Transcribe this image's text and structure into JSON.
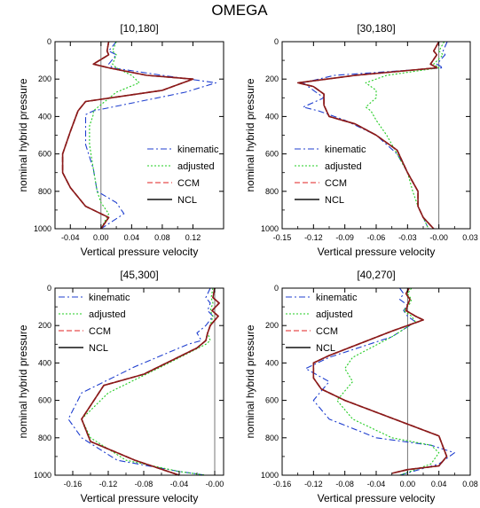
{
  "figure_title": "OMEGA",
  "colors": {
    "kinematic": "#1f3fcf",
    "adjusted": "#22cc22",
    "CCM": "#e02020",
    "NCL": "#111111",
    "ccm_ncl_overlay": "#8b1a1a",
    "zero_line": "#555555"
  },
  "chart_data": [
    {
      "type": "line",
      "title": "[10,180]",
      "xlabel": "Vertical pressure velocity",
      "ylabel": "nominal hybrid pressure",
      "xlim": [
        -0.06,
        0.16
      ],
      "ylim": [
        1000,
        0
      ],
      "xticks": [
        -0.04,
        0.0,
        0.04,
        0.08,
        0.12
      ],
      "xticklabels": [
        "-0.04",
        "0.00",
        "0.04",
        "0.08",
        "0.12"
      ],
      "yticks": [
        0,
        200,
        400,
        600,
        800,
        1000
      ],
      "yticklabels": [
        "0",
        "200",
        "400",
        "600",
        "800",
        "1000"
      ],
      "legend_position": "lower-right",
      "series": [
        {
          "name": "kinematic",
          "style": "dashdot",
          "x": [
            0.02,
            0.01,
            0.02,
            0.01,
            0.015,
            0.08,
            0.15,
            0.11,
            -0.01,
            -0.02,
            -0.02,
            -0.02,
            -0.01,
            -0.005,
            0.02,
            0.03,
            0.0
          ],
          "y": [
            0,
            50,
            70,
            120,
            140,
            180,
            220,
            270,
            370,
            390,
            450,
            550,
            680,
            800,
            860,
            920,
            1000
          ]
        },
        {
          "name": "adjusted",
          "style": "dotted",
          "x": [
            0.02,
            0.015,
            0.02,
            0.015,
            0.02,
            0.04,
            0.05,
            0.02,
            -0.01,
            -0.01,
            -0.015,
            -0.015,
            -0.01,
            -0.005,
            0.0,
            0.01,
            0.0
          ],
          "y": [
            0,
            50,
            70,
            120,
            140,
            180,
            220,
            270,
            370,
            390,
            450,
            550,
            680,
            800,
            860,
            920,
            1000
          ]
        },
        {
          "name": "CCM",
          "style": "dashed",
          "x": [
            0.01,
            0.008,
            0.01,
            -0.01,
            0.01,
            0.06,
            0.12,
            0.08,
            -0.02,
            -0.03,
            -0.04,
            -0.05,
            -0.05,
            -0.04,
            -0.02,
            0.01,
            0.0
          ],
          "y": [
            0,
            50,
            70,
            120,
            140,
            180,
            200,
            260,
            320,
            370,
            480,
            600,
            700,
            780,
            880,
            940,
            1000
          ]
        },
        {
          "name": "NCL",
          "style": "solid",
          "x": [
            0.01,
            0.008,
            0.01,
            -0.01,
            0.01,
            0.06,
            0.12,
            0.08,
            -0.02,
            -0.03,
            -0.04,
            -0.05,
            -0.05,
            -0.04,
            -0.02,
            0.01,
            0.0
          ],
          "y": [
            0,
            50,
            70,
            120,
            140,
            180,
            200,
            260,
            320,
            370,
            480,
            600,
            700,
            780,
            880,
            940,
            1000
          ]
        }
      ]
    },
    {
      "type": "line",
      "title": "[30,180]",
      "xlabel": "Vertical pressure velocity",
      "ylabel": "nominal hybrid pressure",
      "xlim": [
        -0.15,
        0.03
      ],
      "ylim": [
        1000,
        0
      ],
      "xticks": [
        -0.15,
        -0.12,
        -0.09,
        -0.06,
        -0.03,
        0.0,
        0.03
      ],
      "xticklabels": [
        "-0.15",
        "-0.12",
        "-0.09",
        "-0.06",
        "-0.03",
        "-0.00",
        "0.03"
      ],
      "yticks": [
        0,
        200,
        400,
        600,
        800,
        1000
      ],
      "yticklabels": [
        "0",
        "200",
        "400",
        "600",
        "800",
        "1000"
      ],
      "legend_position": "lower-left",
      "series": [
        {
          "name": "kinematic",
          "style": "dashdot",
          "x": [
            0.008,
            0.004,
            0.006,
            -0.002,
            0.004,
            -0.1,
            -0.13,
            -0.12,
            -0.11,
            -0.13,
            -0.115,
            -0.09,
            -0.06,
            -0.04,
            -0.03,
            -0.02,
            -0.02,
            -0.015,
            -0.01
          ],
          "y": [
            0,
            50,
            70,
            120,
            140,
            180,
            220,
            260,
            300,
            350,
            370,
            420,
            500,
            600,
            700,
            800,
            880,
            940,
            1000
          ]
        },
        {
          "name": "adjusted",
          "style": "dotted",
          "x": [
            0.005,
            0.0,
            0.004,
            -0.005,
            0.0,
            -0.05,
            -0.07,
            -0.06,
            -0.06,
            -0.07,
            -0.065,
            -0.06,
            -0.05,
            -0.04,
            -0.03,
            -0.025,
            -0.02,
            -0.015,
            -0.01
          ],
          "y": [
            0,
            50,
            70,
            120,
            140,
            180,
            220,
            260,
            300,
            350,
            370,
            420,
            500,
            600,
            700,
            800,
            880,
            940,
            1000
          ]
        },
        {
          "name": "CCM",
          "style": "dashed",
          "x": [
            0.0,
            -0.005,
            -0.002,
            -0.008,
            -0.002,
            -0.08,
            -0.135,
            -0.12,
            -0.11,
            -0.11,
            -0.105,
            -0.08,
            -0.06,
            -0.04,
            -0.03,
            -0.02,
            -0.02,
            -0.015,
            -0.005
          ],
          "y": [
            0,
            50,
            70,
            120,
            140,
            180,
            220,
            240,
            280,
            340,
            400,
            440,
            500,
            580,
            700,
            800,
            880,
            940,
            1000
          ]
        },
        {
          "name": "NCL",
          "style": "solid",
          "x": [
            0.0,
            -0.005,
            -0.002,
            -0.008,
            -0.002,
            -0.08,
            -0.135,
            -0.12,
            -0.11,
            -0.11,
            -0.105,
            -0.08,
            -0.06,
            -0.04,
            -0.03,
            -0.02,
            -0.02,
            -0.015,
            -0.005
          ],
          "y": [
            0,
            50,
            70,
            120,
            140,
            180,
            220,
            240,
            280,
            340,
            400,
            440,
            500,
            580,
            700,
            800,
            880,
            940,
            1000
          ]
        }
      ]
    },
    {
      "type": "line",
      "title": "[45,300]",
      "xlabel": "Vertical pressure velocity",
      "ylabel": "nominal hybrid pressure",
      "xlim": [
        -0.18,
        0.01
      ],
      "ylim": [
        1000,
        0
      ],
      "xticks": [
        -0.16,
        -0.12,
        -0.08,
        -0.04,
        0.0
      ],
      "xticklabels": [
        "-0.16",
        "-0.12",
        "-0.08",
        "-0.04",
        "-0.00"
      ],
      "yticks": [
        0,
        200,
        400,
        600,
        800,
        1000
      ],
      "yticklabels": [
        "0",
        "200",
        "400",
        "600",
        "800",
        "1000"
      ],
      "legend_position": "upper-left",
      "series": [
        {
          "name": "kinematic",
          "style": "dashdot",
          "x": [
            -0.005,
            -0.01,
            -0.005,
            -0.008,
            -0.002,
            -0.01,
            -0.02,
            -0.015,
            -0.03,
            -0.09,
            -0.15,
            -0.165,
            -0.15,
            -0.11,
            -0.04,
            -0.01
          ],
          "y": [
            0,
            50,
            80,
            120,
            150,
            200,
            240,
            280,
            300,
            420,
            560,
            700,
            800,
            920,
            980,
            1000
          ]
        },
        {
          "name": "adjusted",
          "style": "dotted",
          "x": [
            -0.002,
            -0.004,
            -0.002,
            -0.005,
            -0.002,
            -0.005,
            -0.008,
            -0.005,
            -0.01,
            -0.06,
            -0.12,
            -0.15,
            -0.14,
            -0.1,
            -0.04,
            -0.01
          ],
          "y": [
            0,
            50,
            80,
            120,
            150,
            200,
            240,
            280,
            300,
            420,
            560,
            700,
            800,
            920,
            980,
            1000
          ]
        },
        {
          "name": "CCM",
          "style": "dashed",
          "x": [
            0.0,
            -0.002,
            0.005,
            -0.003,
            0.004,
            -0.005,
            -0.008,
            -0.01,
            -0.02,
            -0.08,
            -0.125,
            -0.15,
            -0.14,
            -0.09,
            -0.04
          ],
          "y": [
            0,
            50,
            80,
            120,
            150,
            200,
            240,
            280,
            320,
            460,
            520,
            700,
            820,
            920,
            1000
          ]
        },
        {
          "name": "NCL",
          "style": "solid",
          "x": [
            0.0,
            -0.002,
            0.005,
            -0.003,
            0.004,
            -0.005,
            -0.008,
            -0.01,
            -0.02,
            -0.08,
            -0.125,
            -0.15,
            -0.14,
            -0.09,
            -0.04
          ],
          "y": [
            0,
            50,
            80,
            120,
            150,
            200,
            240,
            280,
            320,
            460,
            520,
            700,
            820,
            920,
            1000
          ]
        }
      ]
    },
    {
      "type": "line",
      "title": "[40,270]",
      "xlabel": "Vertical pressure velocity",
      "ylabel": "nominal hybrid pressure",
      "xlim": [
        -0.16,
        0.08
      ],
      "ylim": [
        1000,
        0
      ],
      "xticks": [
        -0.16,
        -0.12,
        -0.08,
        -0.04,
        0.0,
        0.04,
        0.08
      ],
      "xticklabels": [
        "-0.16",
        "-0.12",
        "-0.08",
        "-0.04",
        "0.00",
        "0.04",
        "0.08"
      ],
      "yticks": [
        0,
        200,
        400,
        600,
        800,
        1000
      ],
      "yticklabels": [
        "0",
        "200",
        "400",
        "600",
        "800",
        "1000"
      ],
      "legend_position": "upper-left",
      "series": [
        {
          "name": "kinematic",
          "style": "dashdot",
          "x": [
            -0.01,
            -0.005,
            -0.01,
            0.0,
            -0.005,
            0.0,
            0.01,
            -0.02,
            -0.1,
            -0.13,
            -0.1,
            -0.12,
            -0.1,
            -0.04,
            0.03,
            0.06,
            0.04,
            -0.01
          ],
          "y": [
            0,
            30,
            60,
            90,
            120,
            150,
            180,
            260,
            370,
            430,
            500,
            600,
            700,
            800,
            840,
            880,
            940,
            1000
          ]
        },
        {
          "name": "adjusted",
          "style": "dotted",
          "x": [
            0.005,
            0.0,
            0.005,
            0.002,
            -0.005,
            0.005,
            0.01,
            -0.02,
            -0.07,
            -0.08,
            -0.07,
            -0.09,
            -0.07,
            -0.02,
            0.03,
            0.04,
            0.03,
            -0.01
          ],
          "y": [
            0,
            30,
            60,
            90,
            120,
            150,
            180,
            260,
            370,
            430,
            500,
            600,
            700,
            800,
            840,
            880,
            940,
            1000
          ]
        },
        {
          "name": "CCM",
          "style": "dashed",
          "x": [
            0.002,
            -0.002,
            0.003,
            0.0,
            -0.002,
            0.01,
            0.02,
            -0.02,
            -0.1,
            -0.12,
            -0.12,
            -0.11,
            -0.08,
            0.04,
            0.05,
            0.04,
            0.0,
            -0.02
          ],
          "y": [
            0,
            30,
            60,
            90,
            120,
            150,
            170,
            230,
            360,
            400,
            480,
            540,
            600,
            790,
            900,
            950,
            970,
            990
          ]
        },
        {
          "name": "NCL",
          "style": "solid",
          "x": [
            0.002,
            -0.002,
            0.003,
            0.0,
            -0.002,
            0.01,
            0.02,
            -0.02,
            -0.1,
            -0.12,
            -0.12,
            -0.11,
            -0.08,
            0.04,
            0.05,
            0.04,
            0.0,
            -0.02
          ],
          "y": [
            0,
            30,
            60,
            90,
            120,
            150,
            170,
            230,
            360,
            400,
            480,
            540,
            600,
            790,
            900,
            950,
            970,
            990
          ]
        }
      ]
    }
  ]
}
